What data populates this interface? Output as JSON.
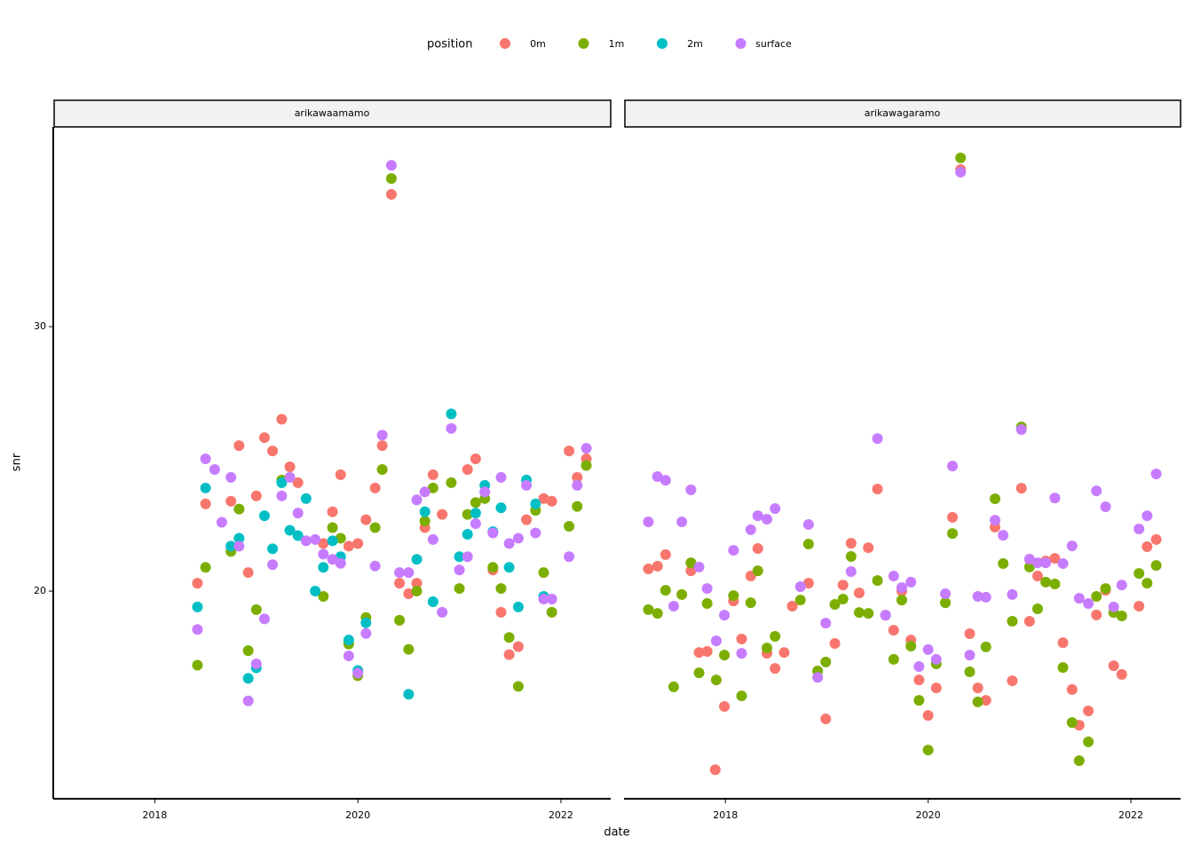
{
  "chart_data": [
    {
      "type": "scatter",
      "title": "arikawaamamo",
      "legend_title": "position",
      "xlabel": "date",
      "ylabel": "snr",
      "xlim": [
        2017.0,
        2022.49
      ],
      "ylim": [
        12.15,
        37.55
      ],
      "xticks": [
        2018,
        2020,
        2022
      ],
      "yticks": [
        20,
        30
      ],
      "series": [
        {
          "name": "0m",
          "color": "#F8766D",
          "x": [
            2018.42,
            2018.5,
            2018.75,
            2018.83,
            2018.92,
            2019.0,
            2019.08,
            2019.16,
            2019.25,
            2019.33,
            2019.41,
            2019.66,
            2019.75,
            2019.83,
            2019.91,
            2020.0,
            2020.08,
            2020.17,
            2020.24,
            2020.33,
            2020.41,
            2020.5,
            2020.58,
            2020.66,
            2020.74,
            2020.83,
            2021.08,
            2021.16,
            2021.33,
            2021.41,
            2021.49,
            2021.58,
            2021.66,
            2021.83,
            2021.91,
            2022.08,
            2022.16,
            2022.25
          ],
          "values": [
            20.3,
            23.3,
            23.4,
            25.5,
            20.7,
            23.6,
            25.8,
            25.3,
            26.5,
            24.7,
            24.1,
            21.8,
            23.0,
            24.4,
            21.7,
            21.8,
            22.7,
            23.9,
            25.5,
            35.0,
            20.3,
            19.9,
            20.3,
            22.4,
            24.4,
            22.9,
            24.6,
            25.0,
            20.8,
            19.2,
            17.6,
            17.9,
            22.7,
            23.5,
            23.4,
            25.3,
            24.3,
            25.0
          ]
        },
        {
          "name": "1m",
          "color": "#7CAE00",
          "x": [
            2018.42,
            2018.5,
            2018.75,
            2018.83,
            2018.92,
            2019.0,
            2019.25,
            2019.66,
            2019.75,
            2019.83,
            2019.91,
            2020.0,
            2020.08,
            2020.17,
            2020.24,
            2020.33,
            2020.41,
            2020.5,
            2020.58,
            2020.66,
            2020.74,
            2020.92,
            2021.0,
            2021.08,
            2021.16,
            2021.25,
            2021.33,
            2021.41,
            2021.49,
            2021.58,
            2021.75,
            2021.83,
            2021.91,
            2022.08,
            2022.16,
            2022.25
          ],
          "values": [
            17.2,
            20.9,
            21.5,
            23.1,
            17.75,
            19.3,
            24.2,
            19.8,
            22.4,
            22.0,
            18.0,
            16.8,
            19.0,
            22.4,
            24.6,
            35.6,
            18.9,
            17.8,
            20.0,
            22.65,
            23.9,
            24.1,
            20.1,
            22.9,
            23.35,
            23.5,
            20.9,
            20.1,
            18.25,
            16.4,
            23.05,
            20.7,
            19.2,
            22.45,
            23.2,
            24.75
          ]
        },
        {
          "name": "2m",
          "color": "#00BFC4",
          "x": [
            2018.42,
            2018.5,
            2018.75,
            2018.83,
            2018.92,
            2019.0,
            2019.08,
            2019.16,
            2019.25,
            2019.33,
            2019.41,
            2019.49,
            2019.58,
            2019.66,
            2019.75,
            2019.83,
            2019.91,
            2020.0,
            2020.08,
            2020.5,
            2020.58,
            2020.66,
            2020.74,
            2020.92,
            2021.0,
            2021.08,
            2021.16,
            2021.25,
            2021.33,
            2021.41,
            2021.49,
            2021.58,
            2021.66,
            2021.75,
            2021.83
          ],
          "values": [
            19.4,
            23.9,
            21.7,
            22.0,
            16.7,
            17.1,
            22.85,
            21.6,
            24.1,
            22.3,
            22.1,
            23.5,
            20.0,
            20.9,
            21.9,
            21.3,
            18.15,
            17.0,
            18.8,
            16.1,
            21.2,
            23.0,
            19.6,
            26.7,
            21.3,
            22.15,
            22.95,
            24.0,
            22.25,
            23.15,
            20.9,
            19.4,
            24.2,
            23.3,
            19.8
          ]
        },
        {
          "name": "surface",
          "color": "#C77CFF",
          "x": [
            2018.42,
            2018.5,
            2018.59,
            2018.66,
            2018.75,
            2018.83,
            2018.92,
            2019.0,
            2019.08,
            2019.16,
            2019.25,
            2019.33,
            2019.41,
            2019.49,
            2019.58,
            2019.66,
            2019.75,
            2019.83,
            2019.91,
            2020.0,
            2020.08,
            2020.17,
            2020.24,
            2020.33,
            2020.41,
            2020.5,
            2020.58,
            2020.66,
            2020.74,
            2020.83,
            2020.92,
            2021.0,
            2021.08,
            2021.16,
            2021.25,
            2021.33,
            2021.41,
            2021.49,
            2021.58,
            2021.66,
            2021.75,
            2021.83,
            2021.91,
            2022.08,
            2022.16,
            2022.25
          ],
          "values": [
            18.55,
            25.0,
            24.6,
            22.6,
            24.3,
            21.7,
            15.85,
            17.25,
            18.95,
            21.0,
            23.6,
            24.3,
            22.95,
            21.9,
            21.95,
            21.4,
            21.2,
            21.05,
            17.55,
            16.9,
            18.4,
            20.95,
            25.9,
            36.1,
            20.7,
            20.7,
            23.45,
            23.75,
            21.95,
            19.2,
            26.15,
            20.8,
            21.3,
            22.55,
            23.75,
            22.2,
            24.3,
            21.8,
            22.0,
            24.0,
            22.2,
            19.7,
            19.7,
            21.3,
            24.0,
            25.4
          ]
        }
      ]
    },
    {
      "type": "scatter",
      "title": "arikawagaramo",
      "xlim": [
        2017.0,
        2022.49
      ],
      "ylim": [
        12.15,
        37.55
      ],
      "xticks": [
        2018,
        2020,
        2022
      ],
      "series": [
        {
          "name": "0m",
          "color": "#F8766D",
          "x": [
            2017.24,
            2017.33,
            2017.41,
            2017.66,
            2017.74,
            2017.82,
            2017.9,
            2017.99,
            2018.08,
            2018.16,
            2018.25,
            2018.32,
            2018.41,
            2018.49,
            2018.58,
            2018.66,
            2018.82,
            2018.99,
            2019.08,
            2019.16,
            2019.24,
            2019.32,
            2019.41,
            2019.5,
            2019.66,
            2019.74,
            2019.83,
            2019.91,
            2020.0,
            2020.08,
            2020.24,
            2020.32,
            2020.41,
            2020.49,
            2020.57,
            2020.66,
            2020.83,
            2020.92,
            2021.0,
            2021.08,
            2021.16,
            2021.25,
            2021.33,
            2021.42,
            2021.49,
            2021.58,
            2021.66,
            2021.75,
            2021.83,
            2021.91,
            2022.08,
            2022.16,
            2022.25
          ],
          "values": [
            20.84,
            20.94,
            21.38,
            20.77,
            17.68,
            17.72,
            13.25,
            15.64,
            19.63,
            18.19,
            20.57,
            21.61,
            17.65,
            17.08,
            17.68,
            19.43,
            20.3,
            15.17,
            18.02,
            20.23,
            21.81,
            19.93,
            21.64,
            23.86,
            18.52,
            20.0,
            18.15,
            16.64,
            15.3,
            16.34,
            22.79,
            35.94,
            18.39,
            16.34,
            15.87,
            22.42,
            16.61,
            23.89,
            18.86,
            20.57,
            21.14,
            21.24,
            18.05,
            16.28,
            14.93,
            15.47,
            19.1,
            20.03,
            17.18,
            16.85,
            19.43,
            21.68,
            21.95
          ]
        },
        {
          "name": "1m",
          "color": "#7CAE00",
          "x": [
            2017.24,
            2017.33,
            2017.41,
            2017.49,
            2017.57,
            2017.66,
            2017.74,
            2017.82,
            2017.91,
            2017.99,
            2018.08,
            2018.16,
            2018.25,
            2018.32,
            2018.41,
            2018.49,
            2018.74,
            2018.82,
            2018.91,
            2018.99,
            2019.08,
            2019.16,
            2019.24,
            2019.32,
            2019.41,
            2019.5,
            2019.58,
            2019.66,
            2019.74,
            2019.83,
            2019.91,
            2020.0,
            2020.08,
            2020.17,
            2020.24,
            2020.32,
            2020.41,
            2020.49,
            2020.57,
            2020.66,
            2020.74,
            2020.83,
            2020.92,
            2021.0,
            2021.08,
            2021.16,
            2021.25,
            2021.33,
            2021.42,
            2021.49,
            2021.58,
            2021.66,
            2021.75,
            2021.83,
            2021.91,
            2022.08,
            2022.16,
            2022.25
          ],
          "values": [
            19.3,
            19.16,
            20.03,
            16.38,
            19.87,
            21.07,
            16.91,
            19.53,
            16.64,
            17.58,
            19.83,
            16.04,
            19.56,
            20.77,
            17.85,
            18.29,
            19.66,
            21.78,
            16.98,
            17.32,
            19.5,
            19.7,
            21.31,
            19.19,
            19.16,
            20.4,
            19.09,
            17.42,
            19.66,
            17.92,
            15.87,
            13.99,
            17.25,
            19.56,
            22.18,
            36.38,
            16.95,
            15.81,
            17.89,
            23.49,
            21.04,
            18.86,
            26.21,
            20.91,
            19.33,
            20.34,
            20.27,
            17.11,
            15.03,
            13.59,
            14.3,
            19.8,
            20.1,
            19.19,
            19.06,
            20.67,
            20.3,
            20.97
          ]
        },
        {
          "name": "surface",
          "color": "#C77CFF",
          "x": [
            2017.24,
            2017.33,
            2017.41,
            2017.49,
            2017.57,
            2017.66,
            2017.74,
            2017.82,
            2017.91,
            2017.99,
            2018.08,
            2018.16,
            2018.25,
            2018.32,
            2018.41,
            2018.49,
            2018.74,
            2018.82,
            2018.91,
            2018.99,
            2019.24,
            2019.5,
            2019.58,
            2019.66,
            2019.74,
            2019.83,
            2019.91,
            2020.0,
            2020.08,
            2020.17,
            2020.24,
            2020.32,
            2020.41,
            2020.49,
            2020.57,
            2020.66,
            2020.74,
            2020.83,
            2020.92,
            2021.0,
            2021.08,
            2021.16,
            2021.25,
            2021.33,
            2021.42,
            2021.49,
            2021.58,
            2021.66,
            2021.75,
            2021.83,
            2021.91,
            2022.08,
            2022.16,
            2022.25
          ],
          "values": [
            22.62,
            24.33,
            24.19,
            19.43,
            22.62,
            23.83,
            20.91,
            20.1,
            18.12,
            19.09,
            21.54,
            17.65,
            22.32,
            22.85,
            22.72,
            23.12,
            20.17,
            22.52,
            16.74,
            18.79,
            20.74,
            25.77,
            19.09,
            20.57,
            20.13,
            20.34,
            17.15,
            17.79,
            17.42,
            19.9,
            24.73,
            35.84,
            17.58,
            19.8,
            19.77,
            22.68,
            22.11,
            19.87,
            26.11,
            21.21,
            21.07,
            21.07,
            23.52,
            21.04,
            21.71,
            19.73,
            19.53,
            23.79,
            23.19,
            19.4,
            20.23,
            22.35,
            22.85,
            24.43
          ]
        }
      ]
    }
  ]
}
